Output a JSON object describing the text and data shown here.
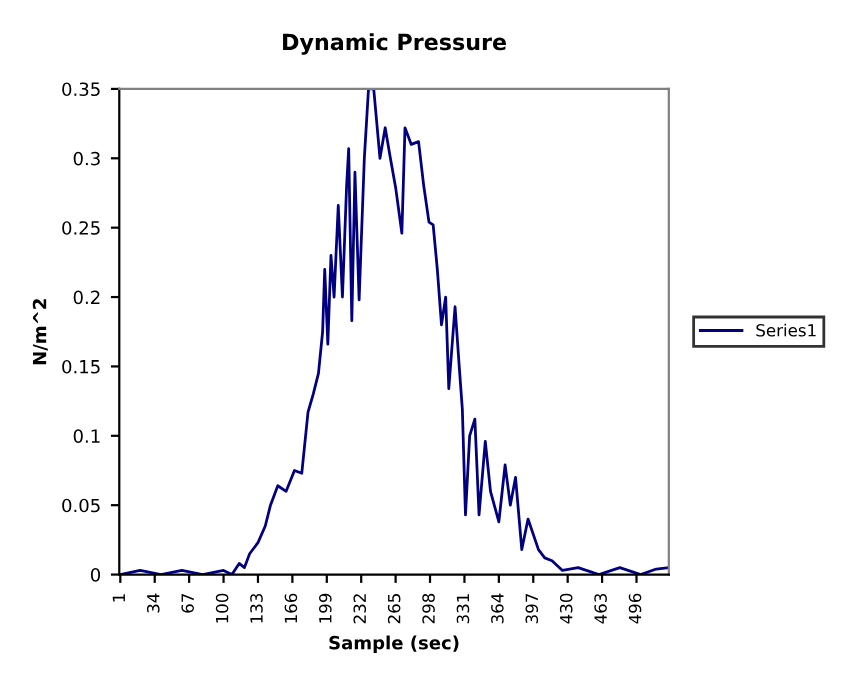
{
  "chart_data": {
    "type": "line",
    "title": "Dynamic Pressure",
    "xlabel": "Sample (sec)",
    "ylabel": "N/m^2",
    "series": [
      {
        "name": "Series1",
        "color": "#000080",
        "x": [
          1,
          20,
          40,
          60,
          80,
          100,
          108,
          115,
          120,
          125,
          133,
          140,
          145,
          152,
          160,
          168,
          175,
          181,
          186,
          191,
          195,
          197,
          200,
          203,
          206,
          210,
          214,
          218,
          220,
          223,
          226,
          230,
          235,
          239,
          244,
          250,
          255,
          260,
          265,
          271,
          274,
          280,
          287,
          292,
          297,
          301,
          305,
          309,
          313,
          316,
          322,
          326,
          329,
          332,
          336,
          341,
          345,
          351,
          356,
          364,
          370,
          375,
          380,
          386,
          392,
          402,
          408,
          415,
          425,
          440,
          460,
          480,
          500,
          515,
          527
        ],
        "values": [
          0,
          0.003,
          0,
          0.003,
          0,
          0.003,
          0,
          0.008,
          0.005,
          0.015,
          0.023,
          0.035,
          0.05,
          0.064,
          0.06,
          0.075,
          0.073,
          0.117,
          0.13,
          0.145,
          0.175,
          0.22,
          0.166,
          0.23,
          0.2,
          0.266,
          0.2,
          0.28,
          0.307,
          0.183,
          0.29,
          0.198,
          0.3,
          0.35,
          0.35,
          0.3,
          0.322,
          0.3,
          0.279,
          0.246,
          0.322,
          0.31,
          0.312,
          0.28,
          0.254,
          0.252,
          0.22,
          0.18,
          0.2,
          0.134,
          0.193,
          0.15,
          0.119,
          0.043,
          0.1,
          0.112,
          0.043,
          0.096,
          0.06,
          0.038,
          0.079,
          0.05,
          0.07,
          0.018,
          0.04,
          0.018,
          0.012,
          0.01,
          0.003,
          0.005,
          0,
          0.005,
          0,
          0.004,
          0.005
        ]
      }
    ],
    "xlim": [
      0,
      527
    ],
    "xticks": [
      1,
      34,
      67,
      100,
      133,
      166,
      199,
      232,
      265,
      298,
      331,
      364,
      397,
      430,
      463,
      496
    ],
    "ylim": [
      0,
      0.35
    ],
    "yticks": [
      0,
      0.05,
      0.1,
      0.15,
      0.2,
      0.25,
      0.3,
      0.35
    ],
    "grid": false,
    "legend": "right",
    "marker": "none",
    "line_style": "solid"
  }
}
